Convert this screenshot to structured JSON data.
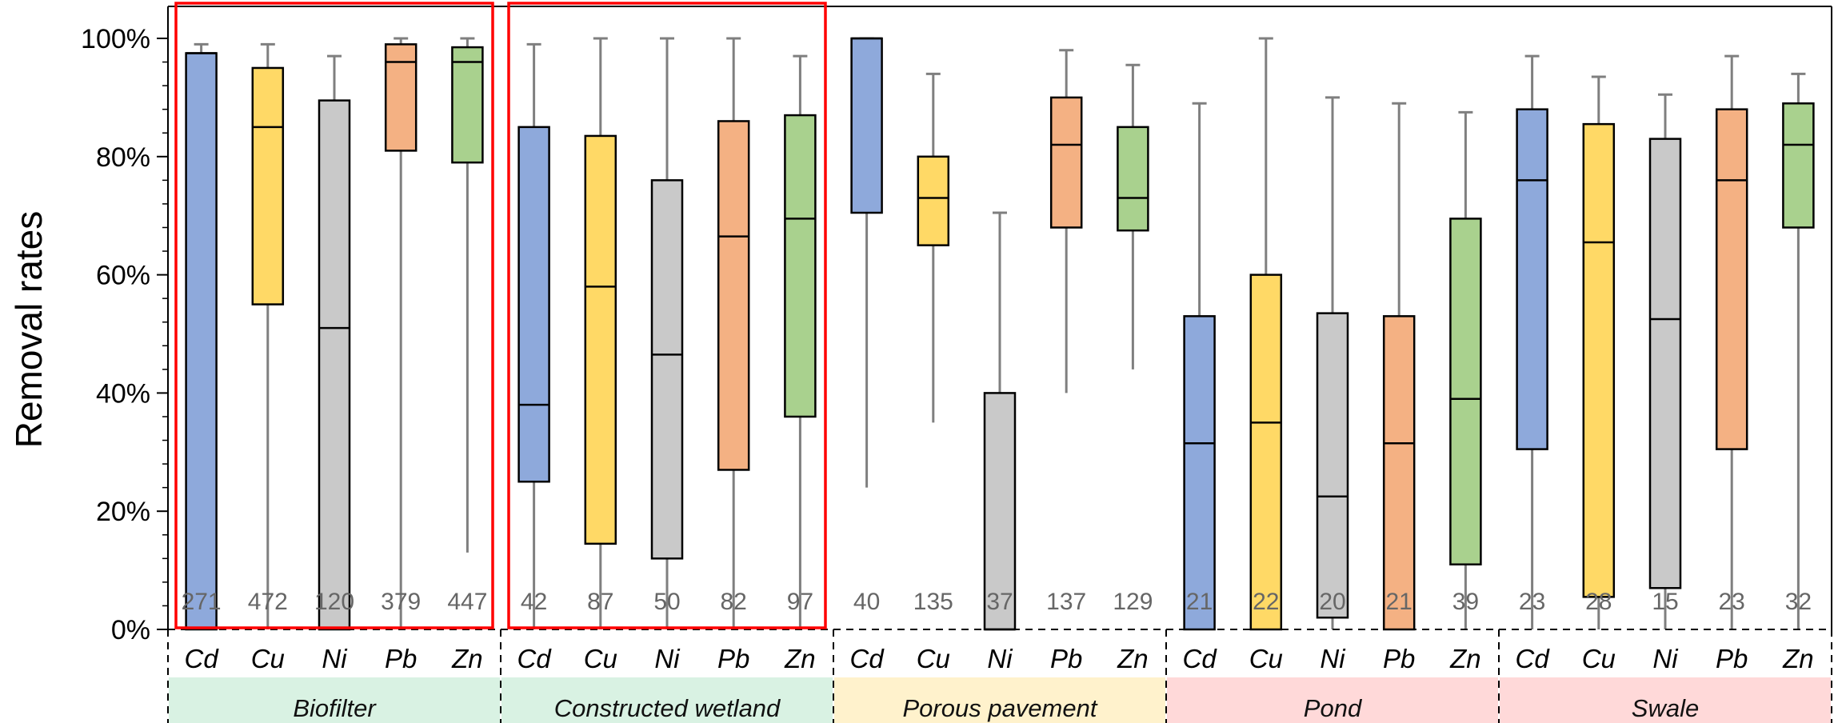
{
  "chart_data": {
    "type": "box",
    "ylabel": "Removal rates",
    "ylim": [
      0,
      100
    ],
    "ytick_labels": [
      "0%",
      "20%",
      "40%",
      "60%",
      "80%",
      "100%"
    ],
    "grid": false,
    "metals": [
      "Cd",
      "Cu",
      "Ni",
      "Pb",
      "Zn"
    ],
    "metal_colors": {
      "Cd": "#8EA9DB",
      "Cu": "#FFD966",
      "Ni": "#C9C9C9",
      "Pb": "#F4B183",
      "Zn": "#A9D18E"
    },
    "groups": [
      {
        "name": "Biofilter",
        "color": "#D9F2E3",
        "highlighted": true,
        "boxes": [
          {
            "metal": "Cd",
            "n": 271,
            "min": 0,
            "q1": 0,
            "median": 97.5,
            "q3": 97.5,
            "max": 99
          },
          {
            "metal": "Cu",
            "n": 472,
            "min": 0,
            "q1": 55,
            "median": 85,
            "q3": 95,
            "max": 99
          },
          {
            "metal": "Ni",
            "n": 120,
            "min": 0,
            "q1": 0,
            "median": 51,
            "q3": 89.5,
            "max": 97
          },
          {
            "metal": "Pb",
            "n": 379,
            "min": 0,
            "q1": 81,
            "median": 96,
            "q3": 99,
            "max": 100
          },
          {
            "metal": "Zn",
            "n": 447,
            "min": 13,
            "q1": 79,
            "median": 96,
            "q3": 98.5,
            "max": 100
          }
        ]
      },
      {
        "name": "Constructed wetland",
        "color": "#D9F2E3",
        "highlighted": true,
        "boxes": [
          {
            "metal": "Cd",
            "n": 42,
            "min": 0,
            "q1": 25,
            "median": 38,
            "q3": 85,
            "max": 99
          },
          {
            "metal": "Cu",
            "n": 87,
            "min": 0,
            "q1": 14.5,
            "median": 58,
            "q3": 83.5,
            "max": 100
          },
          {
            "metal": "Ni",
            "n": 50,
            "min": 0,
            "q1": 12,
            "median": 46.5,
            "q3": 76,
            "max": 100
          },
          {
            "metal": "Pb",
            "n": 82,
            "min": 0,
            "q1": 27,
            "median": 66.5,
            "q3": 86,
            "max": 100
          },
          {
            "metal": "Zn",
            "n": 97,
            "min": 0,
            "q1": 36,
            "median": 69.5,
            "q3": 87,
            "max": 97
          }
        ]
      },
      {
        "name": "Porous pavement",
        "color": "#FFF2CC",
        "highlighted": false,
        "boxes": [
          {
            "metal": "Cd",
            "n": 40,
            "min": 24,
            "q1": 70.5,
            "median": 100,
            "q3": 100,
            "max": 100
          },
          {
            "metal": "Cu",
            "n": 135,
            "min": 35,
            "q1": 65,
            "median": 73,
            "q3": 80,
            "max": 94
          },
          {
            "metal": "Ni",
            "n": 37,
            "min": 0,
            "q1": 0,
            "median": 0,
            "q3": 40,
            "max": 70.5
          },
          {
            "metal": "Pb",
            "n": 137,
            "min": 40,
            "q1": 68,
            "median": 82,
            "q3": 90,
            "max": 98
          },
          {
            "metal": "Zn",
            "n": 129,
            "min": 44,
            "q1": 67.5,
            "median": 73,
            "q3": 85,
            "max": 95.5
          }
        ]
      },
      {
        "name": "Pond",
        "color": "#FFD9D9",
        "highlighted": false,
        "boxes": [
          {
            "metal": "Cd",
            "n": 21,
            "min": 0,
            "q1": 0,
            "median": 31.5,
            "q3": 53,
            "max": 89
          },
          {
            "metal": "Cu",
            "n": 22,
            "min": 0,
            "q1": 0,
            "median": 35,
            "q3": 60,
            "max": 100
          },
          {
            "metal": "Ni",
            "n": 20,
            "min": 0,
            "q1": 2,
            "median": 22.5,
            "q3": 53.5,
            "max": 90
          },
          {
            "metal": "Pb",
            "n": 21,
            "min": 0,
            "q1": 0,
            "median": 31.5,
            "q3": 53,
            "max": 89
          },
          {
            "metal": "Zn",
            "n": 39,
            "min": 0,
            "q1": 11,
            "median": 39,
            "q3": 69.5,
            "max": 87.5
          }
        ]
      },
      {
        "name": "Swale",
        "color": "#FFD9D9",
        "highlighted": false,
        "boxes": [
          {
            "metal": "Cd",
            "n": 23,
            "min": 0,
            "q1": 30.5,
            "median": 76,
            "q3": 88,
            "max": 97
          },
          {
            "metal": "Cu",
            "n": 28,
            "min": 0,
            "q1": 5.5,
            "median": 65.5,
            "q3": 85.5,
            "max": 93.5
          },
          {
            "metal": "Ni",
            "n": 15,
            "min": 0,
            "q1": 7,
            "median": 52.5,
            "q3": 83,
            "max": 90.5
          },
          {
            "metal": "Pb",
            "n": 23,
            "min": 0,
            "q1": 30.5,
            "median": 76,
            "q3": 88,
            "max": 97
          },
          {
            "metal": "Zn",
            "n": 32,
            "min": 0,
            "q1": 68,
            "median": 82,
            "q3": 89,
            "max": 94
          }
        ]
      }
    ]
  }
}
